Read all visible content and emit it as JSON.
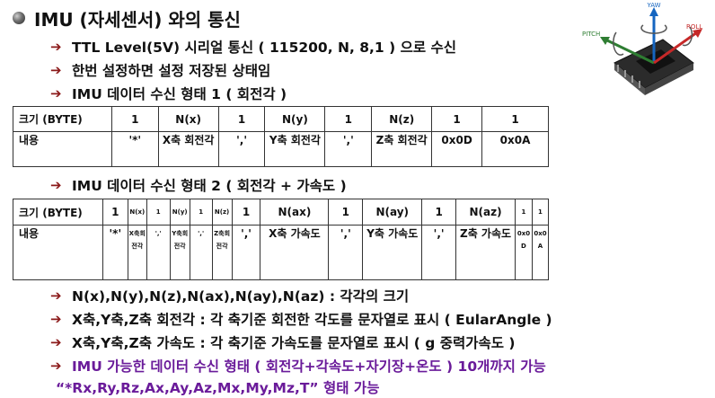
{
  "title": "IMU (자세센서) 와의 통신",
  "bullets": [
    "TTL Level(5V) 시리얼 통신 ( 115200, N, 8,1 ) 으로 수신",
    "한번 설정하면 설정 저장된 상태임",
    "IMU 데이터 수신 형태 1 ( 회전각 )"
  ],
  "table1": {
    "row_size": [
      "크기 (BYTE)",
      "1",
      "N(x)",
      "1",
      "N(y)",
      "1",
      "N(z)",
      "1",
      "1"
    ],
    "row_content": [
      "내용",
      "'*'",
      "X축 회전각",
      "','",
      "Y축 회전각",
      "','",
      "Z축 회전각",
      "0x0D",
      "0x0A"
    ]
  },
  "bullet_format2": "IMU 데이터 수신 형태 2 ( 회전각 + 가속도 )",
  "table2": {
    "row_size": [
      "크기 (BYTE)",
      "1",
      "N(x)",
      "1",
      "N(y)",
      "1",
      "N(z)",
      "1",
      "N(ax)",
      "1",
      "N(ay)",
      "1",
      "N(az)",
      "1",
      "1"
    ],
    "row_content": [
      "내용",
      "'*'",
      "X축회전각",
      "','",
      "Y축회전각",
      "','",
      "Z축회전각",
      "','",
      "X축 가속도",
      "','",
      "Y축 가속도",
      "','",
      "Z축 가속도",
      "0x0D",
      "0x0A"
    ]
  },
  "notes": [
    "N(x),N(y),N(z),N(ax),N(ay),N(az) : 각각의 크기",
    "X축,Y축,Z축 회전각 : 각 축기준 회전한 각도를 문자열로 표시 ( EularAngle )",
    "X축,Y축,Z축 가속도 : 각 축기준 가속도를 문자열로 표시 ( g 중력가속도 )",
    "IMU 가능한 데이터 수신 형태 ( 회전각+각속도+자기장+온도 ) 10개까지 가능"
  ],
  "footer_line": "“*Rx,Ry,Rz,Ax,Ay,Az,Mx,My,Mz,T”  형태 가능",
  "diagram": {
    "yaw": "YAW",
    "pitch": "PITCH",
    "roll": "ROLL"
  },
  "colors": {
    "arrow": "#8b1a1a",
    "purple": "#6a1b9a",
    "pitch": "#2e7d32",
    "yaw": "#1565c0",
    "roll": "#c62828"
  }
}
